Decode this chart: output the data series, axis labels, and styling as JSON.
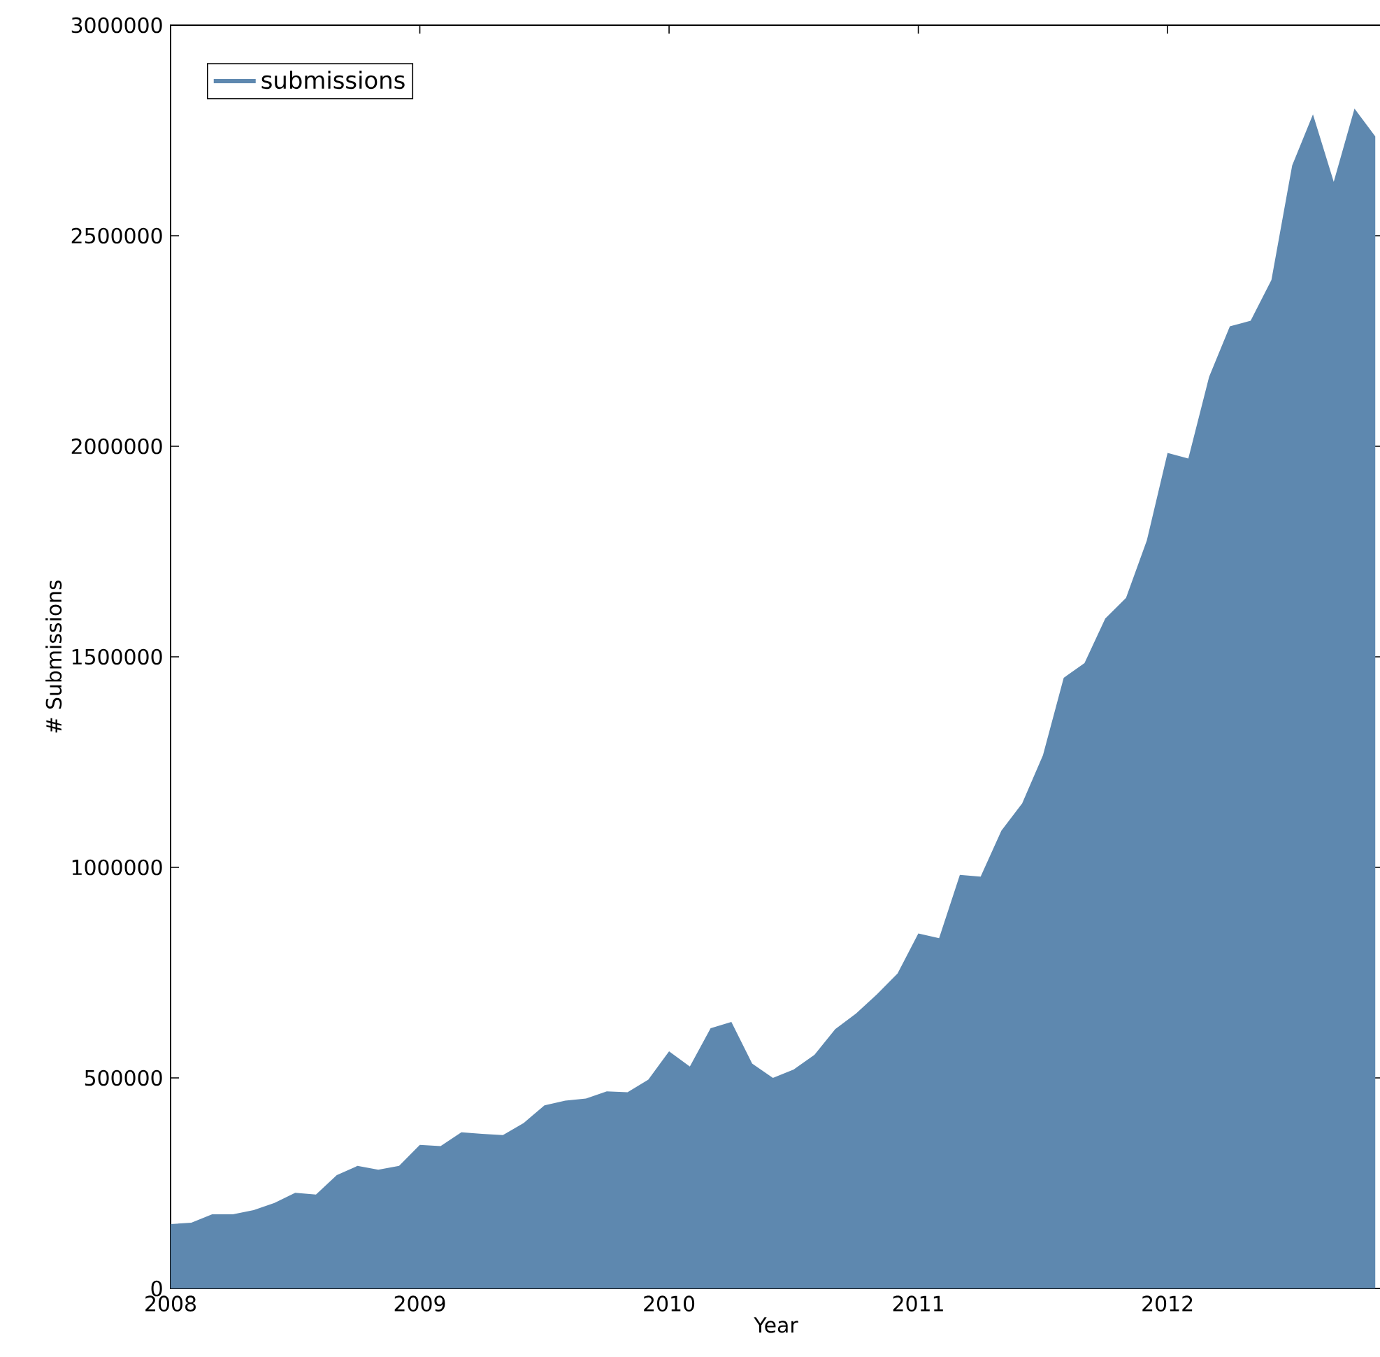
{
  "chart_data": {
    "type": "area",
    "xlabel": "Year",
    "ylabel": "# Submissions",
    "x": [
      "2008-01",
      "2008-02",
      "2008-03",
      "2008-04",
      "2008-05",
      "2008-06",
      "2008-07",
      "2008-08",
      "2008-09",
      "2008-10",
      "2008-11",
      "2008-12",
      "2009-01",
      "2009-02",
      "2009-03",
      "2009-04",
      "2009-05",
      "2009-06",
      "2009-07",
      "2009-08",
      "2009-09",
      "2009-10",
      "2009-11",
      "2009-12",
      "2010-01",
      "2010-02",
      "2010-03",
      "2010-04",
      "2010-05",
      "2010-06",
      "2010-07",
      "2010-08",
      "2010-09",
      "2010-10",
      "2010-11",
      "2010-12",
      "2011-01",
      "2011-02",
      "2011-03",
      "2011-04",
      "2011-05",
      "2011-06",
      "2011-07",
      "2011-08",
      "2011-09",
      "2011-10",
      "2011-11",
      "2011-12",
      "2012-01",
      "2012-02",
      "2012-03",
      "2012-04",
      "2012-05",
      "2012-06",
      "2012-07",
      "2012-08",
      "2012-09",
      "2012-10",
      "2012-11"
    ],
    "series": [
      {
        "name": "submissions",
        "color": "#5e88af",
        "values": [
          153000,
          156000,
          176000,
          176000,
          186000,
          203000,
          227000,
          223000,
          269000,
          291000,
          282000,
          291000,
          341000,
          338000,
          371000,
          367000,
          364000,
          393000,
          435000,
          446000,
          451000,
          468000,
          466000,
          496000,
          563000,
          527000,
          618000,
          633000,
          534000,
          500000,
          520000,
          555000,
          616000,
          653000,
          698000,
          748000,
          843000,
          832000,
          982000,
          978000,
          1087000,
          1152000,
          1266000,
          1450000,
          1485000,
          1591000,
          1640000,
          1776000,
          1984000,
          1971000,
          2165000,
          2285000,
          2298000,
          2395000,
          2667000,
          2788000,
          2628000,
          2802000,
          2736000
        ]
      }
    ],
    "xlim": [
      "2008-01-01",
      "2012-11-10"
    ],
    "xticks": [
      {
        "value": "2008",
        "label": "2008"
      },
      {
        "value": "2009",
        "label": "2009"
      },
      {
        "value": "2010",
        "label": "2010"
      },
      {
        "value": "2011",
        "label": "2011"
      },
      {
        "value": "2012",
        "label": "2012"
      }
    ],
    "ylim": [
      0,
      3000000
    ],
    "yticks": [
      0,
      500000,
      1000000,
      1500000,
      2000000,
      2500000,
      3000000
    ],
    "legend": "top left"
  }
}
